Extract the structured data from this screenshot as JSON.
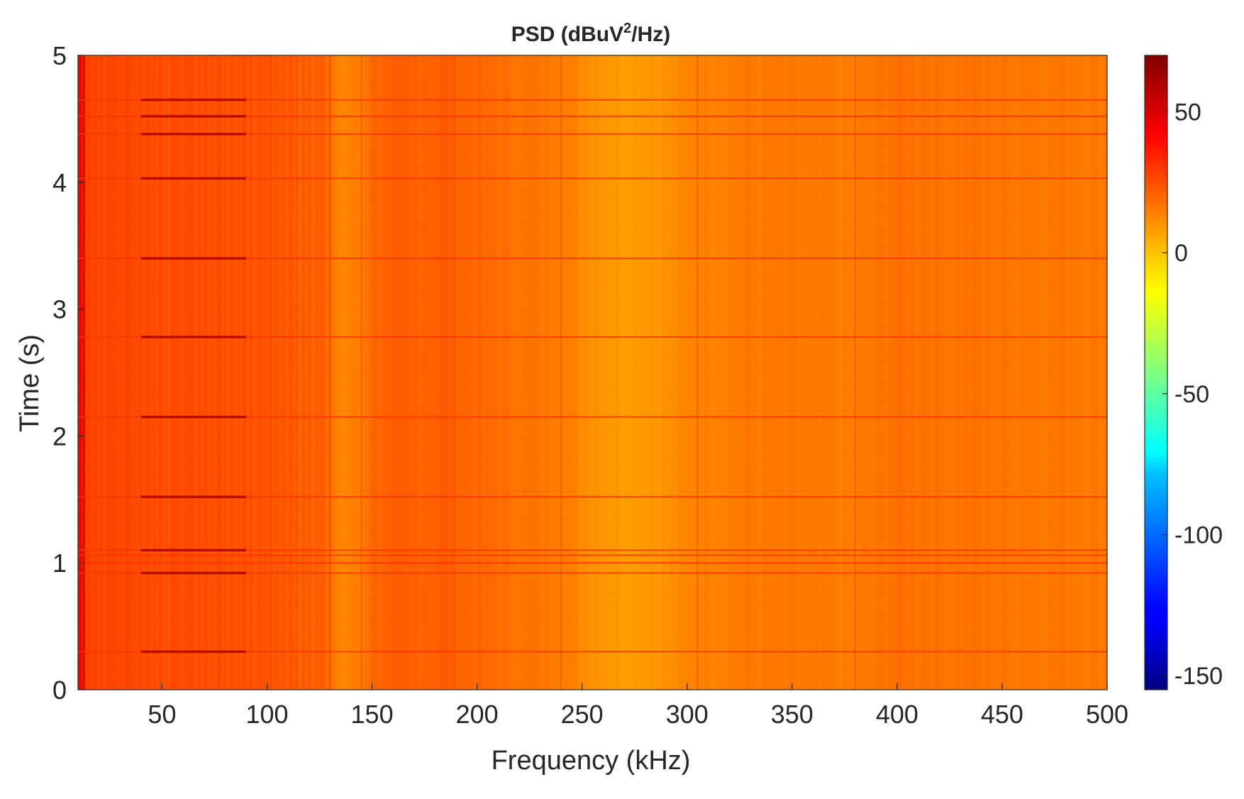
{
  "chart_data": {
    "type": "heatmap",
    "title": {
      "prefix": "PSD (dBuV",
      "superscript": "2",
      "suffix": "/Hz)"
    },
    "xlabel": "Frequency (kHz)",
    "ylabel": "Time (s)",
    "xlim": [
      10,
      500
    ],
    "ylim": [
      0,
      5
    ],
    "x_ticks": [
      50,
      100,
      150,
      200,
      250,
      300,
      350,
      400,
      450,
      500
    ],
    "y_ticks": [
      0,
      1,
      2,
      3,
      4,
      5
    ],
    "colorbar": {
      "colormap": "jet",
      "clim": [
        -155,
        70
      ],
      "ticks": [
        -150,
        -100,
        -50,
        0,
        50
      ]
    },
    "grid": false,
    "psd_profile_db": [
      {
        "f": 10,
        "db": 42
      },
      {
        "f": 12,
        "db": 30
      },
      {
        "f": 20,
        "db": 28
      },
      {
        "f": 50,
        "db": 26
      },
      {
        "f": 90,
        "db": 25
      },
      {
        "f": 100,
        "db": 24
      },
      {
        "f": 125,
        "db": 22
      },
      {
        "f": 135,
        "db": 13
      },
      {
        "f": 145,
        "db": 15
      },
      {
        "f": 150,
        "db": 21
      },
      {
        "f": 175,
        "db": 22
      },
      {
        "f": 185,
        "db": 23
      },
      {
        "f": 200,
        "db": 20
      },
      {
        "f": 225,
        "db": 17
      },
      {
        "f": 240,
        "db": 16
      },
      {
        "f": 250,
        "db": 12
      },
      {
        "f": 270,
        "db": 8
      },
      {
        "f": 290,
        "db": 10
      },
      {
        "f": 305,
        "db": 14
      },
      {
        "f": 330,
        "db": 16
      },
      {
        "f": 380,
        "db": 15
      },
      {
        "f": 400,
        "db": 18
      },
      {
        "f": 450,
        "db": 17
      },
      {
        "f": 500,
        "db": 16
      }
    ],
    "horizontal_lines_s": [
      0.3,
      0.92,
      1.0,
      1.06,
      1.1,
      1.52,
      2.15,
      2.78,
      3.4,
      4.03,
      4.38,
      4.52,
      4.65
    ],
    "strong_bursts": [
      {
        "t": 0.3,
        "f_start": 40,
        "f_end": 90
      },
      {
        "t": 0.92,
        "f_start": 40,
        "f_end": 90
      },
      {
        "t": 1.1,
        "f_start": 40,
        "f_end": 90
      },
      {
        "t": 1.52,
        "f_start": 40,
        "f_end": 90
      },
      {
        "t": 2.15,
        "f_start": 40,
        "f_end": 90
      },
      {
        "t": 2.78,
        "f_start": 40,
        "f_end": 90
      },
      {
        "t": 3.4,
        "f_start": 40,
        "f_end": 90
      },
      {
        "t": 4.03,
        "f_start": 40,
        "f_end": 90
      },
      {
        "t": 4.38,
        "f_start": 40,
        "f_end": 90
      },
      {
        "t": 4.52,
        "f_start": 40,
        "f_end": 90
      },
      {
        "t": 4.65,
        "f_start": 40,
        "f_end": 90
      }
    ]
  }
}
